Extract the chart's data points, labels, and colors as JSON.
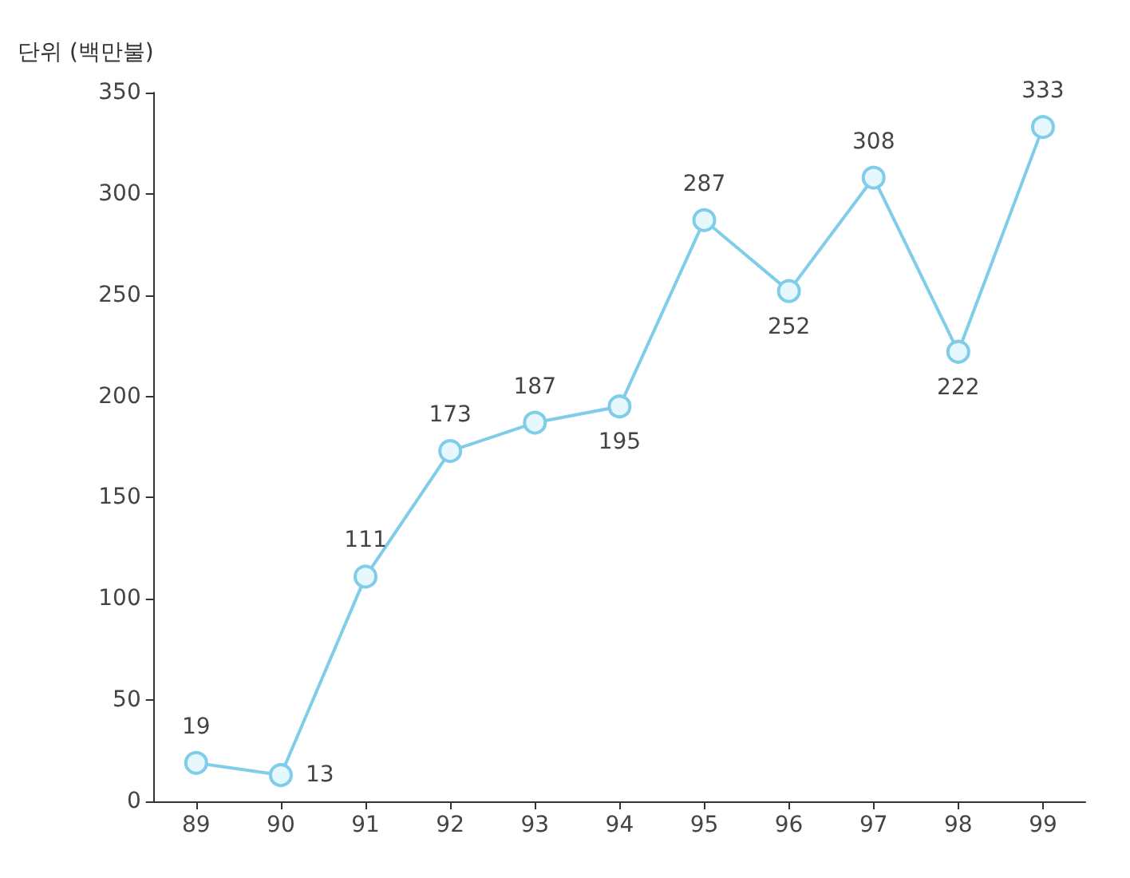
{
  "chart_data": {
    "type": "line",
    "ylabel": "단위 (백만불)",
    "categories": [
      "89",
      "90",
      "91",
      "92",
      "93",
      "94",
      "95",
      "96",
      "97",
      "98",
      "99"
    ],
    "series": [
      {
        "color": "#7fcde8",
        "values": [
          19,
          13,
          111,
          173,
          187,
          195,
          287,
          252,
          308,
          222,
          333
        ]
      }
    ],
    "ylim": [
      0,
      350
    ],
    "yticks": [
      0,
      50,
      100,
      150,
      200,
      250,
      300,
      350
    ],
    "grid": false,
    "marker": "circle",
    "line_style": "solid",
    "data_labels": true
  }
}
